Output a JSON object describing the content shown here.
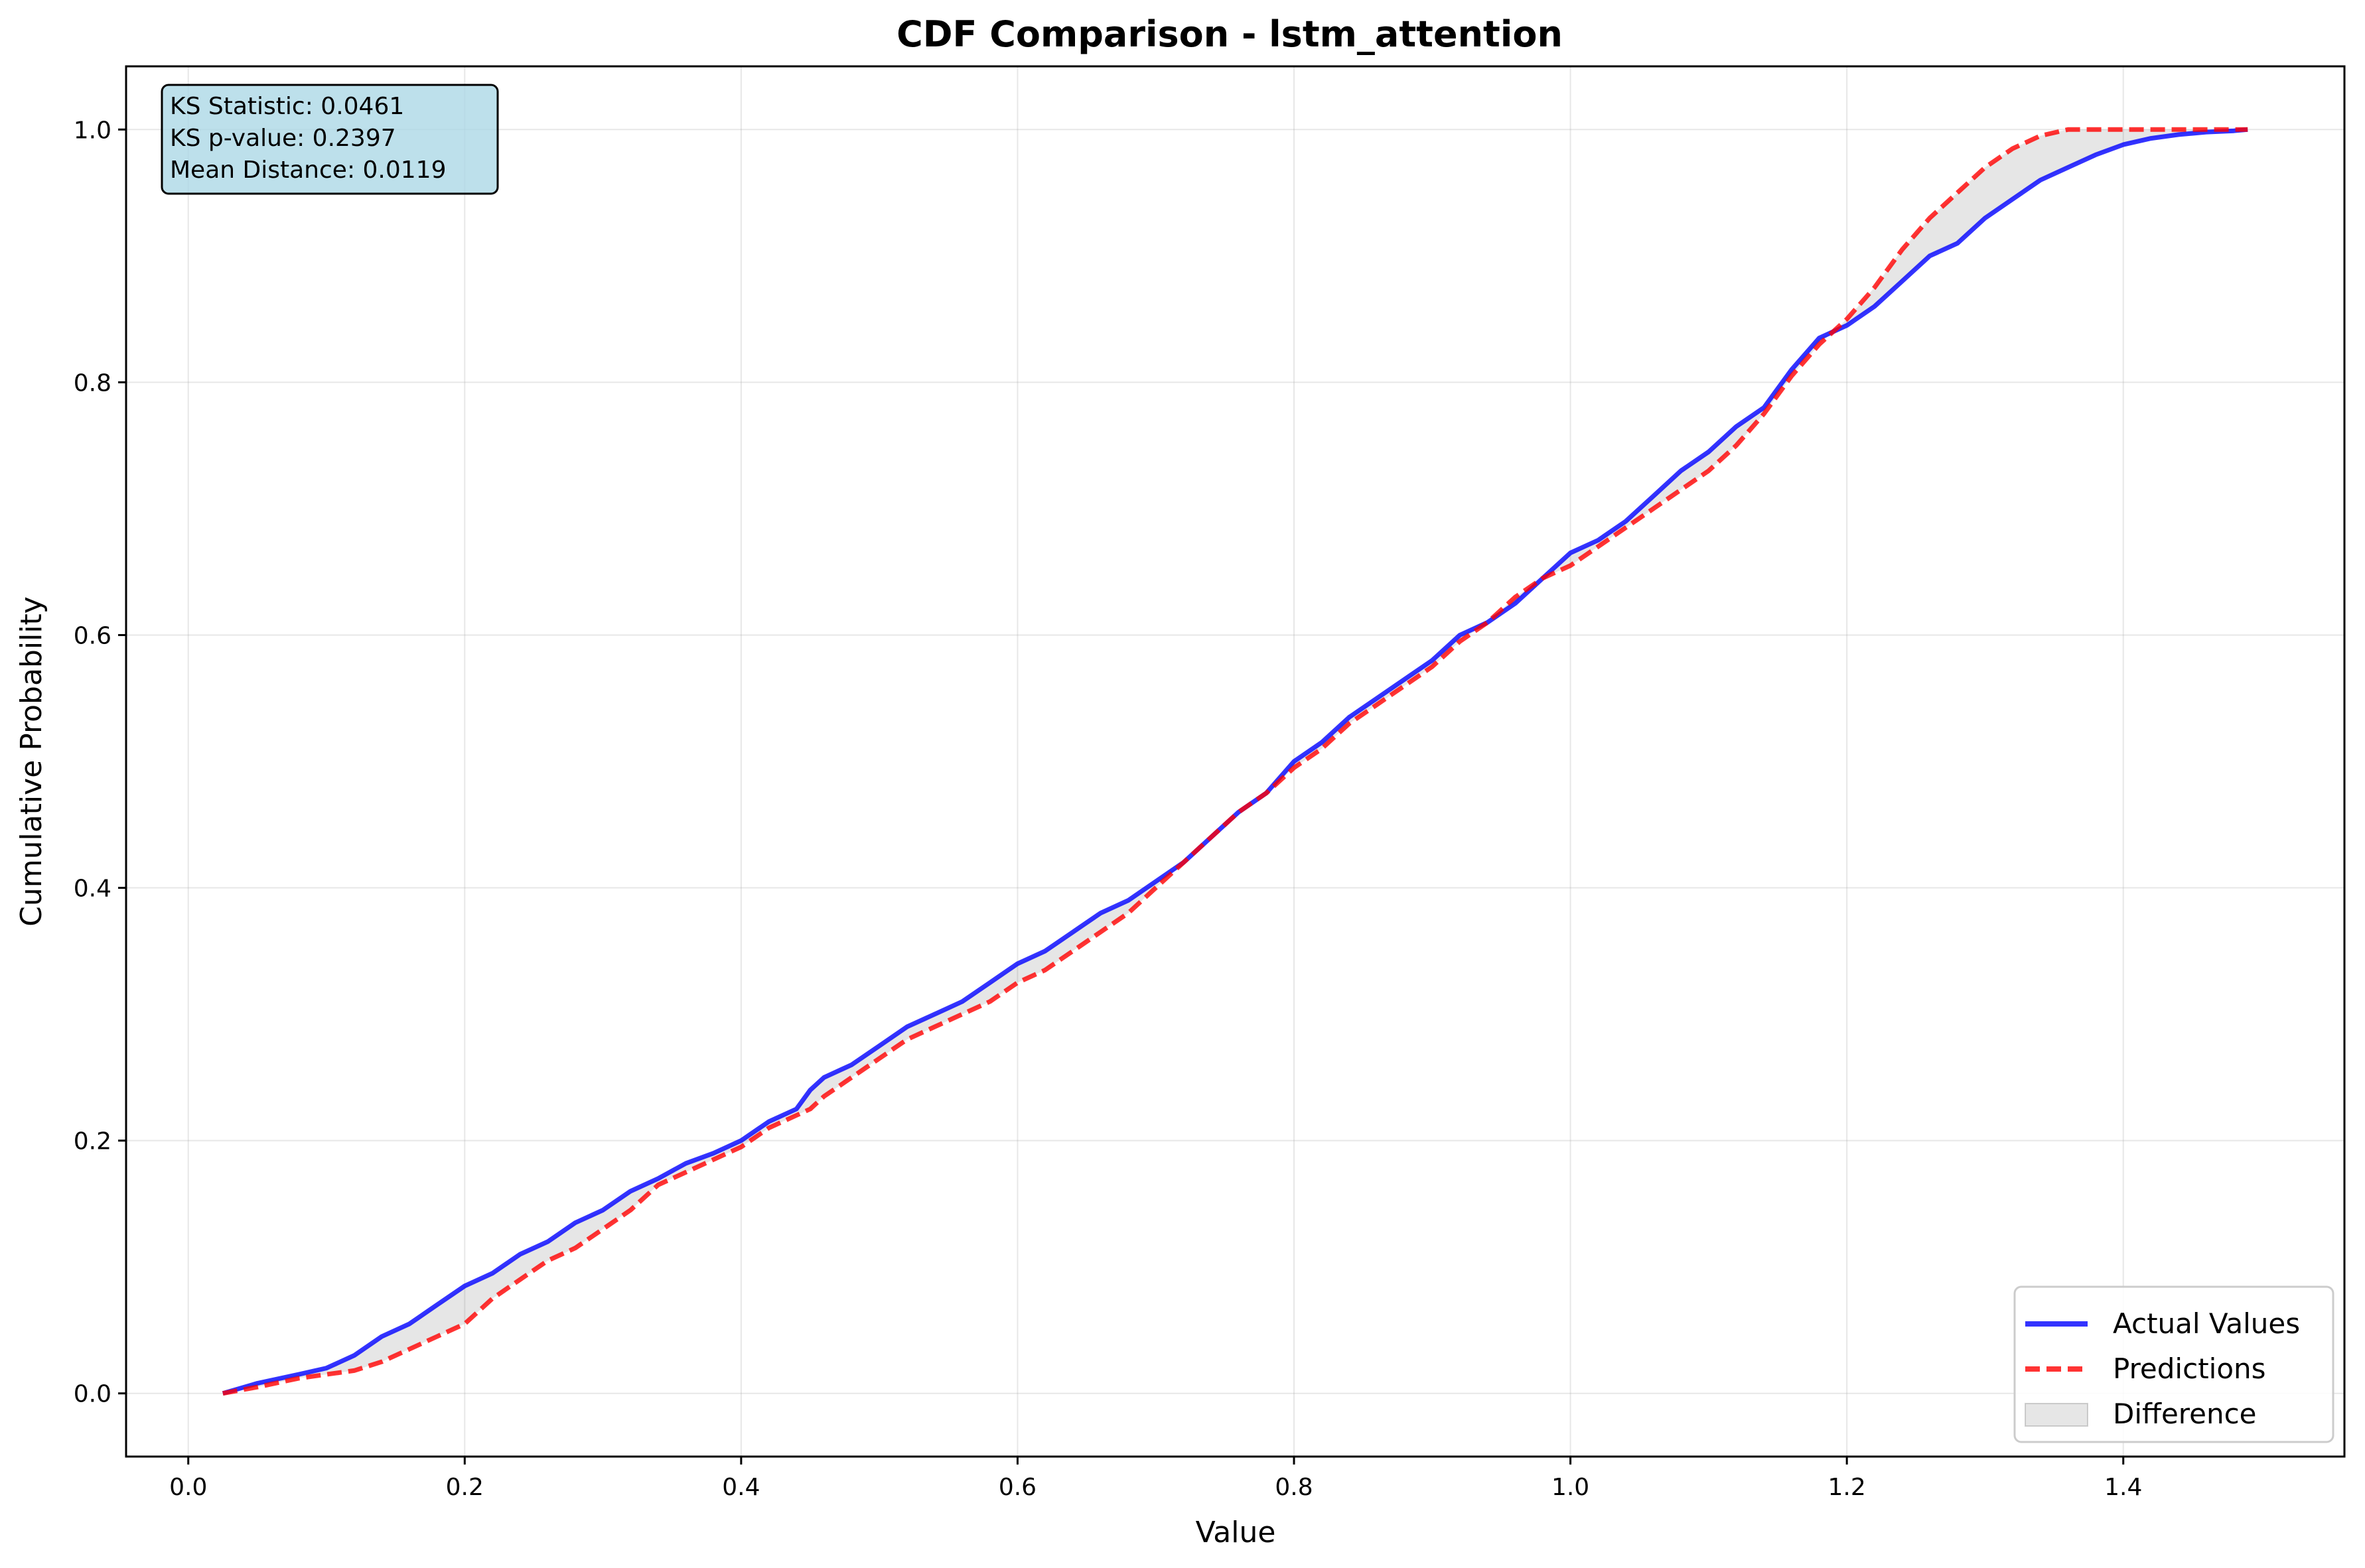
{
  "chart_data": {
    "type": "line",
    "title": "CDF Comparison - lstm_attention",
    "xlabel": "Value",
    "ylabel": "Cumulative Probability",
    "xlim": [
      -0.045,
      1.56
    ],
    "ylim": [
      -0.05,
      1.05
    ],
    "xticks": [
      "0.0",
      "0.2",
      "0.4",
      "0.6",
      "0.8",
      "1.0",
      "1.2",
      "1.4"
    ],
    "yticks": [
      "0.0",
      "0.2",
      "0.4",
      "0.6",
      "0.8",
      "1.0"
    ],
    "grid": true,
    "legend_position": "bottom-right",
    "stats_box": {
      "lines": [
        "KS Statistic: 0.0461",
        "KS p-value: 0.2397",
        "Mean Distance: 0.0119"
      ],
      "background": "#add8e6"
    },
    "series": [
      {
        "name": "Actual Values",
        "color": "#0000ff",
        "style": "solid",
        "x": [
          0.025,
          0.05,
          0.08,
          0.1,
          0.12,
          0.14,
          0.16,
          0.18,
          0.2,
          0.22,
          0.24,
          0.26,
          0.28,
          0.3,
          0.32,
          0.34,
          0.36,
          0.38,
          0.4,
          0.42,
          0.44,
          0.45,
          0.46,
          0.48,
          0.5,
          0.52,
          0.54,
          0.56,
          0.58,
          0.6,
          0.62,
          0.64,
          0.66,
          0.68,
          0.7,
          0.72,
          0.74,
          0.76,
          0.78,
          0.8,
          0.82,
          0.84,
          0.86,
          0.88,
          0.9,
          0.92,
          0.94,
          0.96,
          0.98,
          1.0,
          1.02,
          1.04,
          1.06,
          1.08,
          1.1,
          1.12,
          1.14,
          1.16,
          1.18,
          1.2,
          1.22,
          1.24,
          1.26,
          1.28,
          1.3,
          1.32,
          1.34,
          1.36,
          1.38,
          1.4,
          1.42,
          1.44,
          1.46,
          1.48,
          1.49
        ],
        "y": [
          0.0,
          0.008,
          0.015,
          0.02,
          0.03,
          0.045,
          0.055,
          0.07,
          0.085,
          0.095,
          0.11,
          0.12,
          0.135,
          0.145,
          0.16,
          0.17,
          0.182,
          0.19,
          0.2,
          0.215,
          0.225,
          0.24,
          0.25,
          0.26,
          0.275,
          0.29,
          0.3,
          0.31,
          0.325,
          0.34,
          0.35,
          0.365,
          0.38,
          0.39,
          0.405,
          0.42,
          0.44,
          0.46,
          0.475,
          0.5,
          0.515,
          0.535,
          0.55,
          0.565,
          0.58,
          0.6,
          0.61,
          0.625,
          0.645,
          0.665,
          0.675,
          0.69,
          0.71,
          0.73,
          0.745,
          0.765,
          0.78,
          0.81,
          0.835,
          0.845,
          0.86,
          0.88,
          0.9,
          0.91,
          0.93,
          0.945,
          0.96,
          0.97,
          0.98,
          0.988,
          0.993,
          0.996,
          0.998,
          0.999,
          1.0
        ]
      },
      {
        "name": "Predictions",
        "color": "#ff0000",
        "style": "dashed",
        "x": [
          0.025,
          0.05,
          0.08,
          0.1,
          0.12,
          0.14,
          0.16,
          0.18,
          0.2,
          0.22,
          0.24,
          0.26,
          0.28,
          0.3,
          0.32,
          0.34,
          0.36,
          0.38,
          0.4,
          0.42,
          0.44,
          0.45,
          0.46,
          0.48,
          0.5,
          0.52,
          0.54,
          0.56,
          0.58,
          0.6,
          0.62,
          0.64,
          0.66,
          0.68,
          0.7,
          0.72,
          0.74,
          0.76,
          0.78,
          0.8,
          0.82,
          0.84,
          0.86,
          0.88,
          0.9,
          0.92,
          0.94,
          0.96,
          0.98,
          1.0,
          1.02,
          1.04,
          1.06,
          1.08,
          1.1,
          1.12,
          1.14,
          1.16,
          1.18,
          1.2,
          1.22,
          1.24,
          1.26,
          1.28,
          1.3,
          1.32,
          1.34,
          1.36,
          1.38,
          1.4,
          1.42,
          1.44,
          1.46,
          1.48,
          1.49
        ],
        "y": [
          0.0,
          0.005,
          0.012,
          0.015,
          0.018,
          0.025,
          0.035,
          0.045,
          0.055,
          0.075,
          0.09,
          0.105,
          0.115,
          0.13,
          0.145,
          0.165,
          0.175,
          0.185,
          0.195,
          0.21,
          0.22,
          0.225,
          0.235,
          0.25,
          0.265,
          0.28,
          0.29,
          0.3,
          0.31,
          0.325,
          0.335,
          0.35,
          0.365,
          0.38,
          0.4,
          0.42,
          0.44,
          0.46,
          0.475,
          0.495,
          0.51,
          0.53,
          0.545,
          0.56,
          0.575,
          0.595,
          0.61,
          0.63,
          0.645,
          0.655,
          0.67,
          0.685,
          0.7,
          0.715,
          0.73,
          0.75,
          0.775,
          0.805,
          0.83,
          0.85,
          0.875,
          0.905,
          0.93,
          0.95,
          0.97,
          0.985,
          0.995,
          1.0,
          1.0,
          1.0,
          1.0,
          1.0,
          1.0,
          1.0,
          1.0
        ]
      }
    ],
    "fill": {
      "name": "Difference",
      "color": "#808080",
      "opacity": 0.2
    }
  }
}
